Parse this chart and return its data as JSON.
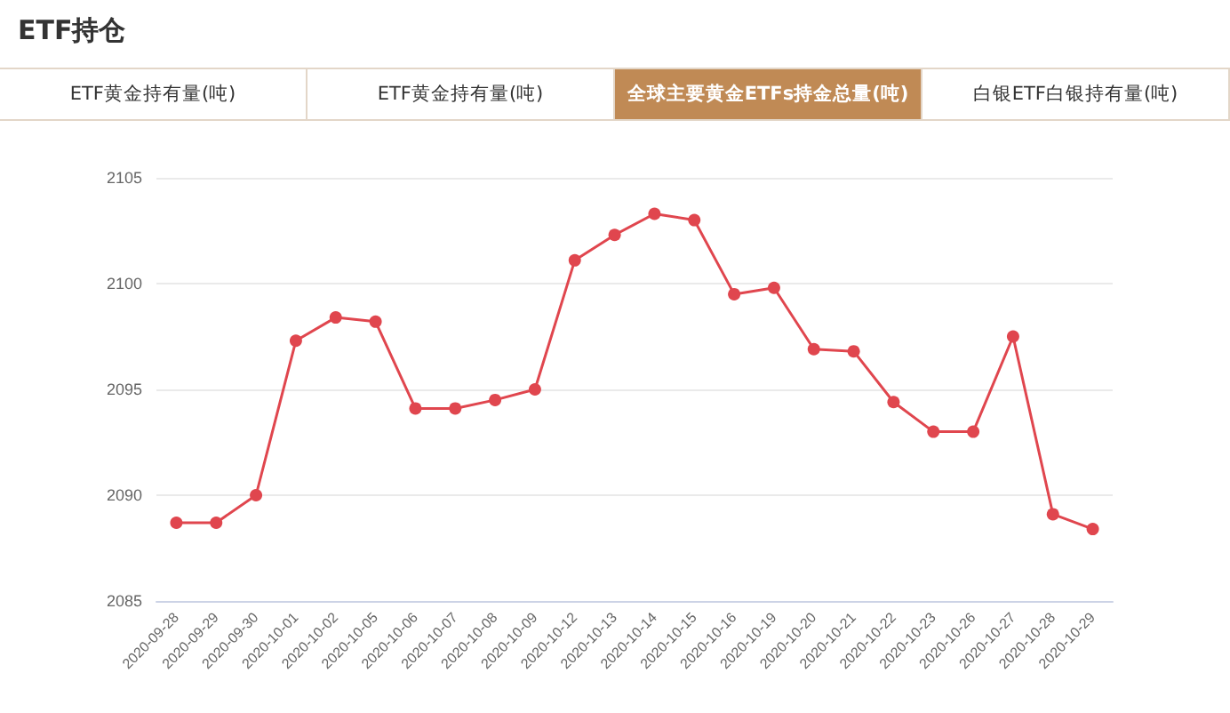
{
  "chart_data": {
    "type": "line",
    "title": "ETF持仓",
    "subtitle": "全球主要黄金ETFs持金总量(吨)",
    "annotations": [
      "ETF黄金持有量(吨)",
      "ETF黄金持有量(吨)",
      "白银ETF白银持有量(吨)"
    ],
    "categories": [
      "2020-09-28",
      "2020-09-29",
      "2020-09-30",
      "2020-10-01",
      "2020-10-02",
      "2020-10-05",
      "2020-10-06",
      "2020-10-07",
      "2020-10-08",
      "2020-10-09",
      "2020-10-12",
      "2020-10-13",
      "2020-10-14",
      "2020-10-15",
      "2020-10-16",
      "2020-10-19",
      "2020-10-20",
      "2020-10-21",
      "2020-10-22",
      "2020-10-23",
      "2020-10-26",
      "2020-10-27",
      "2020-10-28",
      "2020-10-29"
    ],
    "series": [
      {
        "color": "#e0464e",
        "values": [
          2088.7,
          2088.7,
          2090.0,
          2097.3,
          2098.4,
          2098.2,
          2094.1,
          2094.1,
          2094.5,
          2095.0,
          2101.1,
          2102.3,
          2103.3,
          2103.0,
          2099.5,
          2099.8,
          2096.9,
          2096.8,
          2094.4,
          2093.0,
          2093.0,
          2097.5,
          2089.1,
          2088.4
        ]
      }
    ],
    "ylim": [
      2085,
      2105
    ],
    "yticks": [
      2085,
      2090,
      2095,
      2100,
      2105
    ],
    "grid": "y",
    "marker": "circle",
    "line_style": "solid"
  }
}
